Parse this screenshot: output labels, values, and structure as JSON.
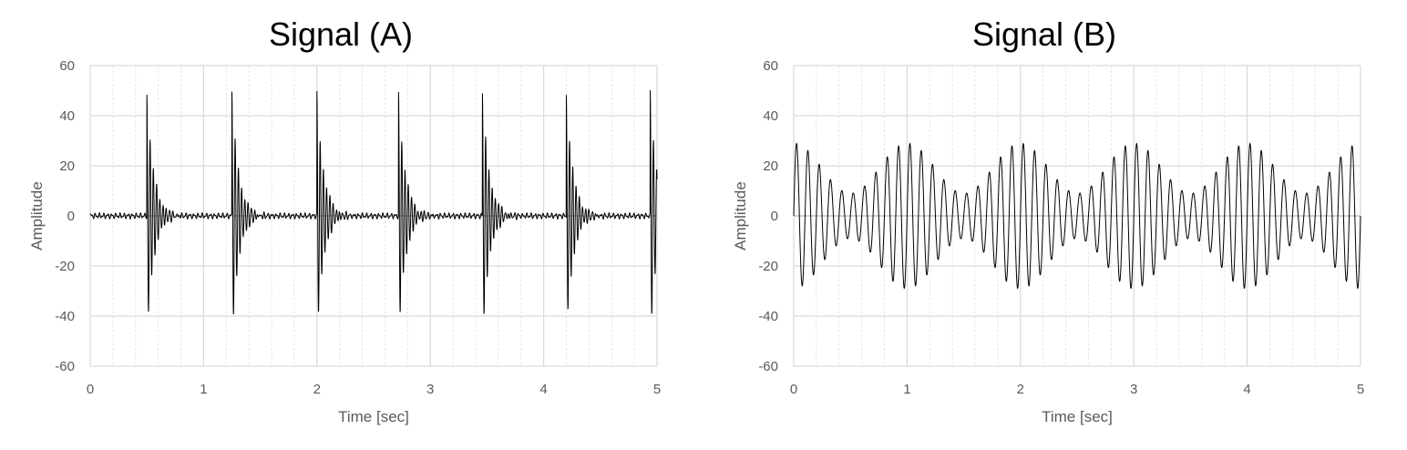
{
  "chart_data": [
    {
      "type": "line",
      "title": "Signal (A)",
      "xlabel": "Time [sec]",
      "ylabel": "Amplitude",
      "xlim": [
        0,
        5
      ],
      "ylim": [
        -60,
        60
      ],
      "xticks": [
        "0",
        "1",
        "2",
        "3",
        "4",
        "5"
      ],
      "yticks": [
        "60",
        "40",
        "20",
        "0",
        "-20",
        "-40",
        "-60"
      ],
      "grid": true,
      "minor_grid_step_sec": 0.2,
      "line_color": "#000000",
      "series": [
        {
          "description_values": {
            "impulse_times_sec": [
              0.5,
              1.25,
              2.0,
              2.72,
              3.46,
              4.2,
              4.94
            ],
            "impulse_peak_amplitude": 49,
            "ringing_frequency_hz": 35,
            "decay_time_constant_sec": 0.06,
            "baseline_noise_amplitude": 1.2
          }
        }
      ]
    },
    {
      "type": "line",
      "title": "Signal (B)",
      "xlabel": "Time [sec]",
      "ylabel": "Amplitude",
      "xlim": [
        0,
        5
      ],
      "ylim": [
        -60,
        60
      ],
      "xticks": [
        "0",
        "1",
        "2",
        "3",
        "4",
        "5"
      ],
      "yticks": [
        "60",
        "40",
        "20",
        "0",
        "-20",
        "-40",
        "-60"
      ],
      "grid": true,
      "minor_grid_step_sec": 0.2,
      "line_color": "#000000",
      "series": [
        {
          "description_values": {
            "carrier_frequency_hz": 10,
            "envelope_max_amplitude": 29,
            "envelope_min_amplitude": 9,
            "envelope_period_sec": 1.0
          }
        }
      ]
    }
  ]
}
